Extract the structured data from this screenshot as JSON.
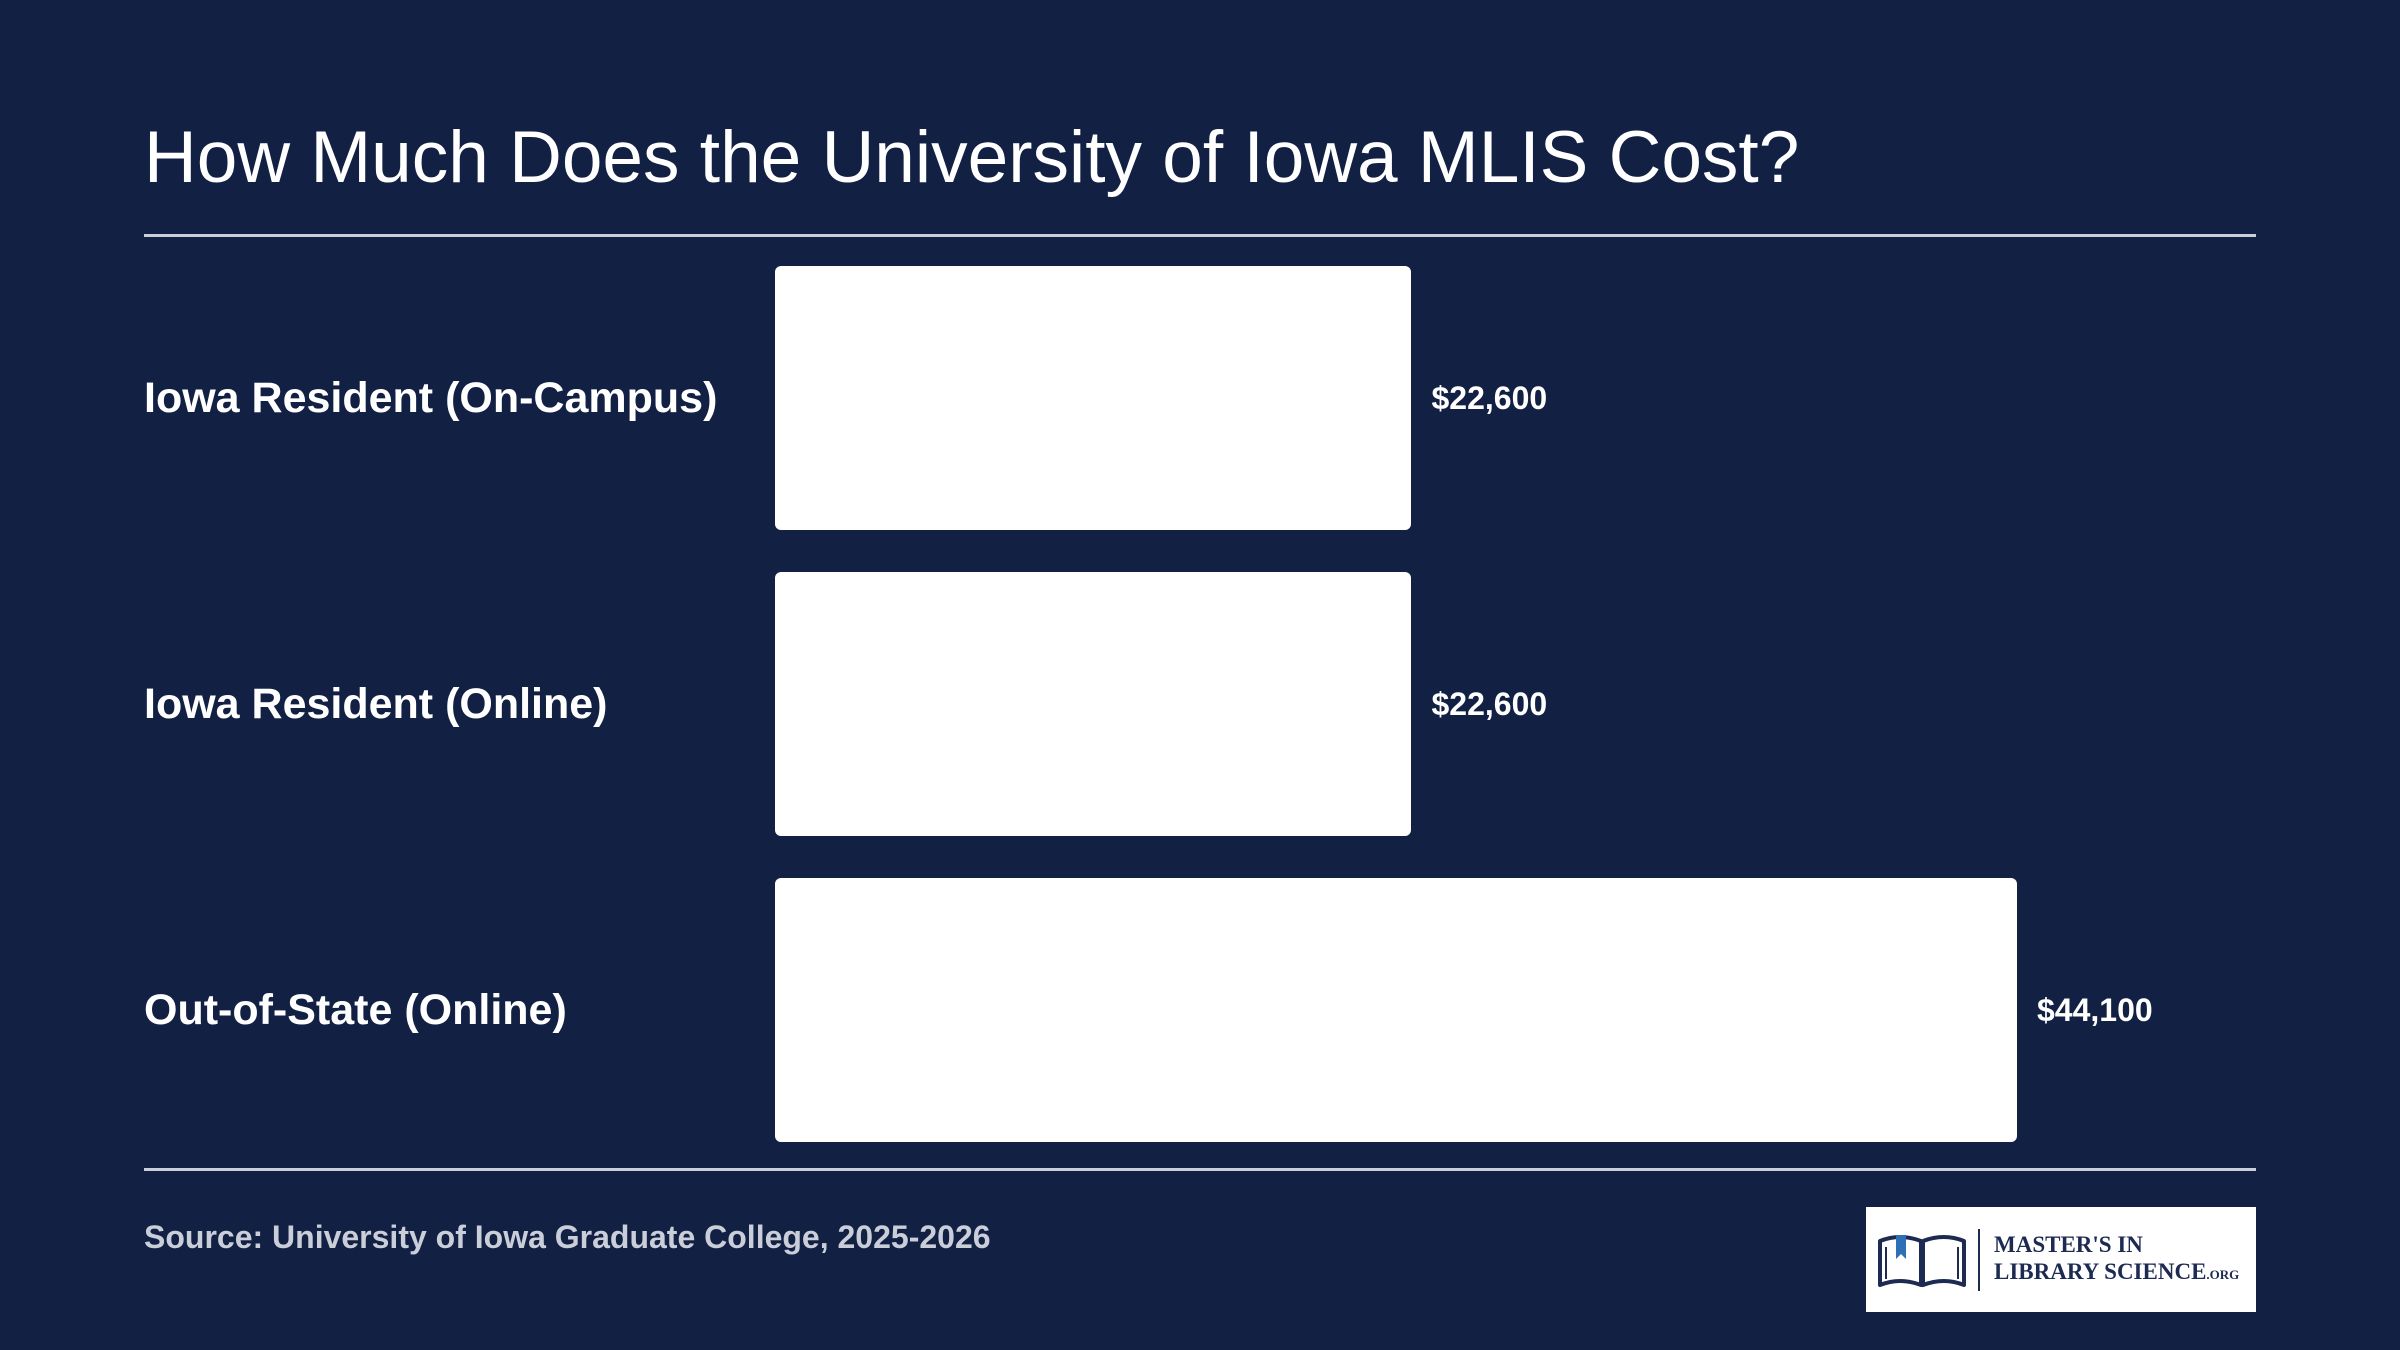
{
  "chart_data": {
    "type": "bar",
    "orientation": "horizontal",
    "title": "How Much Does the University of Iowa MLIS Cost?",
    "categories": [
      "Iowa Resident (On-Campus)",
      "Iowa Resident (Online)",
      "Out-of-State (Online)"
    ],
    "values": [
      22600,
      22600,
      44100
    ],
    "value_labels": [
      "$22,600",
      "$22,600",
      "$44,100"
    ],
    "xlabel": "",
    "ylabel": "",
    "grid": false,
    "legend": "none"
  },
  "source": "Source: University of Iowa Graduate College, 2025-2026",
  "logo": {
    "line1": "MASTER'S IN",
    "line2": "LIBRARY SCIENCE",
    "suffix": ".ORG"
  },
  "colors": {
    "background": "#122044",
    "bar": "#ffffff",
    "text": "#ffffff",
    "muted_text": "#c9ced9",
    "logo_navy": "#1d2a52",
    "logo_blue": "#2f6fb5"
  },
  "icons": {
    "logo_mark": "open-book-icon"
  }
}
